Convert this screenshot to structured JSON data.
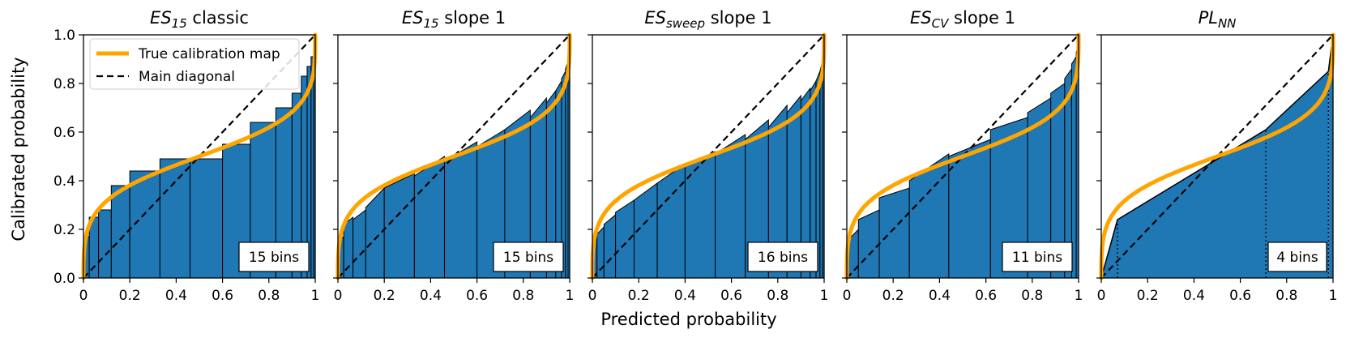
{
  "figure": {
    "ylabel": "Calibrated probability",
    "xlabel": "Predicted probability",
    "legend": {
      "true_map": "True calibration map",
      "diagonal": "Main diagonal"
    }
  },
  "colors": {
    "bar": "#1f77b4",
    "curve": "#ffa500",
    "diagonal": "#000000"
  },
  "chart_data": [
    {
      "type": "bar",
      "title_main": "ES",
      "title_sub": "15",
      "title_rest": " classic",
      "bins_label": "15 bins",
      "xlim": [
        0,
        1
      ],
      "ylim": [
        0,
        1
      ],
      "xticks": [
        "0",
        "0.2",
        "0.4",
        "0.6",
        "0.8",
        "1"
      ],
      "yticks": [
        "0.0",
        "0.2",
        "0.4",
        "0.6",
        "0.8",
        "1.0"
      ],
      "edges": [
        0,
        0.025,
        0.065,
        0.12,
        0.2,
        0.33,
        0.46,
        0.6,
        0.72,
        0.83,
        0.9,
        0.94,
        0.965,
        0.982,
        0.993,
        1
      ],
      "bars": [
        [
          0.17,
          0.17
        ],
        [
          0.25,
          0.25
        ],
        [
          0.28,
          0.28
        ],
        [
          0.38,
          0.38
        ],
        [
          0.44,
          0.44
        ],
        [
          0.49,
          0.49
        ],
        [
          0.49,
          0.49
        ],
        [
          0.55,
          0.55
        ],
        [
          0.64,
          0.64
        ],
        [
          0.7,
          0.7
        ],
        [
          0.76,
          0.76
        ],
        [
          0.83,
          0.83
        ],
        [
          0.87,
          0.87
        ],
        [
          0.91,
          0.91
        ],
        [
          0.95,
          0.95
        ]
      ]
    },
    {
      "type": "bar",
      "title_main": "ES",
      "title_sub": "15",
      "title_rest": " slope 1",
      "bins_label": "15 bins",
      "xlim": [
        0,
        1
      ],
      "ylim": [
        0,
        1
      ],
      "xticks": [
        "0",
        "0.2",
        "0.4",
        "0.6",
        "0.8",
        "1"
      ],
      "yticks": [
        "0.0",
        "0.2",
        "0.4",
        "0.6",
        "0.8",
        "1.0"
      ],
      "edges": [
        0,
        0.025,
        0.065,
        0.12,
        0.2,
        0.33,
        0.46,
        0.6,
        0.72,
        0.83,
        0.9,
        0.94,
        0.965,
        0.982,
        0.993,
        1
      ],
      "bars": [
        [
          0.15,
          0.17
        ],
        [
          0.22,
          0.25
        ],
        [
          0.24,
          0.28
        ],
        [
          0.29,
          0.37
        ],
        [
          0.37,
          0.43
        ],
        [
          0.42,
          0.5
        ],
        [
          0.48,
          0.56
        ],
        [
          0.54,
          0.61
        ],
        [
          0.61,
          0.69
        ],
        [
          0.66,
          0.74
        ],
        [
          0.72,
          0.77
        ],
        [
          0.77,
          0.81
        ],
        [
          0.82,
          0.85
        ],
        [
          0.86,
          0.89
        ],
        [
          0.9,
          0.94
        ]
      ]
    },
    {
      "type": "bar",
      "title_main": "ES",
      "title_sub": "sweep",
      "title_rest": " slope 1",
      "bins_label": "16 bins",
      "xlim": [
        0,
        1
      ],
      "ylim": [
        0,
        1
      ],
      "xticks": [
        "0",
        "0.2",
        "0.4",
        "0.6",
        "0.8",
        "1"
      ],
      "yticks": [
        "0.0",
        "0.2",
        "0.4",
        "0.6",
        "0.8",
        "1.0"
      ],
      "edges": [
        0,
        0.02,
        0.05,
        0.1,
        0.18,
        0.28,
        0.4,
        0.53,
        0.66,
        0.76,
        0.84,
        0.9,
        0.94,
        0.965,
        0.982,
        0.993,
        1
      ],
      "bars": [
        [
          0.14,
          0.16
        ],
        [
          0.18,
          0.21
        ],
        [
          0.22,
          0.26
        ],
        [
          0.27,
          0.32
        ],
        [
          0.32,
          0.39
        ],
        [
          0.39,
          0.47
        ],
        [
          0.46,
          0.52
        ],
        [
          0.51,
          0.59
        ],
        [
          0.57,
          0.65
        ],
        [
          0.62,
          0.71
        ],
        [
          0.68,
          0.75
        ],
        [
          0.73,
          0.78
        ],
        [
          0.77,
          0.81
        ],
        [
          0.81,
          0.85
        ],
        [
          0.85,
          0.89
        ],
        [
          0.89,
          0.93
        ]
      ]
    },
    {
      "type": "bar",
      "title_main": "ES",
      "title_sub": "CV",
      "title_rest": " slope 1",
      "bins_label": "11 bins",
      "xlim": [
        0,
        1
      ],
      "ylim": [
        0,
        1
      ],
      "xticks": [
        "0",
        "0.2",
        "0.4",
        "0.6",
        "0.8",
        "1"
      ],
      "yticks": [
        "0.0",
        "0.2",
        "0.4",
        "0.6",
        "0.8",
        "1.0"
      ],
      "edges": [
        0,
        0.05,
        0.14,
        0.27,
        0.44,
        0.62,
        0.78,
        0.88,
        0.94,
        0.97,
        0.99,
        1
      ],
      "bars": [
        [
          0.15,
          0.2
        ],
        [
          0.24,
          0.28
        ],
        [
          0.33,
          0.37
        ],
        [
          0.4,
          0.51
        ],
        [
          0.5,
          0.57
        ],
        [
          0.61,
          0.66
        ],
        [
          0.68,
          0.74
        ],
        [
          0.76,
          0.8
        ],
        [
          0.82,
          0.86
        ],
        [
          0.88,
          0.91
        ],
        [
          0.93,
          0.95
        ]
      ]
    },
    {
      "type": "bar",
      "title_main": "PL",
      "title_sub": "NN",
      "title_rest": "",
      "bins_label": "4 bins",
      "xlim": [
        0,
        1
      ],
      "ylim": [
        0,
        1
      ],
      "xticks": [
        "0",
        "0.2",
        "0.4",
        "0.6",
        "0.8",
        "1"
      ],
      "yticks": [
        "0.0",
        "0.2",
        "0.4",
        "0.6",
        "0.8",
        "1.0"
      ],
      "edges": [
        0,
        0.07,
        0.71,
        0.98,
        1
      ],
      "bars": [
        [
          0.0,
          0.24
        ],
        [
          0.24,
          0.61
        ],
        [
          0.61,
          0.85
        ],
        [
          0.85,
          1.0
        ]
      ],
      "dotted_edges": true
    }
  ]
}
